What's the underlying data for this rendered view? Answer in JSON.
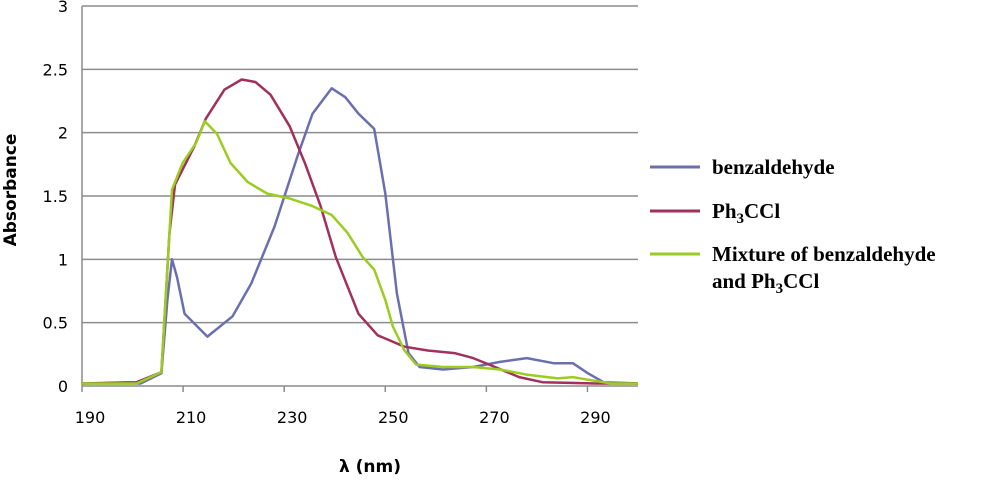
{
  "chart_data": {
    "type": "line",
    "title": "",
    "xlabel": "λ (nm)",
    "ylabel": "Absorbance",
    "xlim": [
      190,
      300
    ],
    "ylim": [
      0,
      3
    ],
    "xticks": [
      190,
      210,
      230,
      250,
      270,
      290
    ],
    "yticks": [
      0,
      0.5,
      1,
      1.5,
      2,
      2.5,
      3
    ],
    "ytick_labels": [
      "0",
      "0.5",
      "1",
      "1.5",
      "2",
      "2.5",
      "3"
    ],
    "grid": "horizontal",
    "legend_position": "right",
    "series": [
      {
        "name": "benzaldehyde",
        "color": "#6b6fb0",
        "x": [
          190,
          201.6,
          205.7,
          206.9,
          207.8,
          208.8,
          210.3,
          214.8,
          219.8,
          223.5,
          228.1,
          232.6,
          235.6,
          239.4,
          242.1,
          244.7,
          247.8,
          250,
          252.3,
          254.6,
          256.8,
          261.4,
          267.4,
          272.7,
          278,
          283.3,
          287.1,
          290.1,
          293.2,
          300
        ],
        "y": [
          0.02,
          0.02,
          0.1,
          0.68,
          1.0,
          0.86,
          0.57,
          0.39,
          0.55,
          0.81,
          1.26,
          1.81,
          2.15,
          2.35,
          2.28,
          2.15,
          2.03,
          1.52,
          0.73,
          0.26,
          0.15,
          0.13,
          0.15,
          0.19,
          0.22,
          0.18,
          0.18,
          0.1,
          0.03,
          0.02
        ]
      },
      {
        "name": "Ph3CCl",
        "label_parts": [
          "Ph",
          "3",
          "CCl"
        ],
        "color": "#a0305c",
        "x": [
          190,
          200.8,
          205.7,
          207.3,
          208.4,
          212.2,
          214.5,
          218.2,
          221.6,
          224.3,
          227.3,
          231.1,
          234.1,
          237.2,
          240.2,
          244.7,
          248.5,
          253.8,
          258.4,
          263.7,
          267.4,
          270.5,
          276.5,
          281.1,
          291.7,
          300
        ],
        "y": [
          0.02,
          0.03,
          0.11,
          1.2,
          1.59,
          1.89,
          2.11,
          2.34,
          2.42,
          2.4,
          2.3,
          2.05,
          1.76,
          1.42,
          1.02,
          0.57,
          0.4,
          0.31,
          0.28,
          0.26,
          0.22,
          0.17,
          0.07,
          0.03,
          0.02,
          0.02
        ]
      },
      {
        "name": "Mixture of benzaldehyde and Ph3CCl",
        "label_line1": "Mixture of benzaldehyde",
        "label_line2_parts": [
          "and Ph",
          "3",
          "CCl"
        ],
        "color": "#9acd20",
        "x": [
          190,
          200.8,
          205.7,
          207,
          207.8,
          209.9,
          212.6,
          214.3,
          216.7,
          219.4,
          222.8,
          226.6,
          231.1,
          235.6,
          239.4,
          242.5,
          245.5,
          247.8,
          250,
          251.5,
          253.8,
          256.1,
          261.4,
          267.4,
          272.7,
          278,
          284.1,
          287.1,
          290.1,
          294.7,
          300
        ],
        "y": [
          0.02,
          0.02,
          0.11,
          1.0,
          1.55,
          1.76,
          1.92,
          2.09,
          1.99,
          1.76,
          1.61,
          1.52,
          1.48,
          1.42,
          1.35,
          1.21,
          1.02,
          0.92,
          0.68,
          0.47,
          0.28,
          0.17,
          0.15,
          0.15,
          0.13,
          0.09,
          0.06,
          0.07,
          0.05,
          0.02,
          0.02
        ]
      }
    ]
  }
}
